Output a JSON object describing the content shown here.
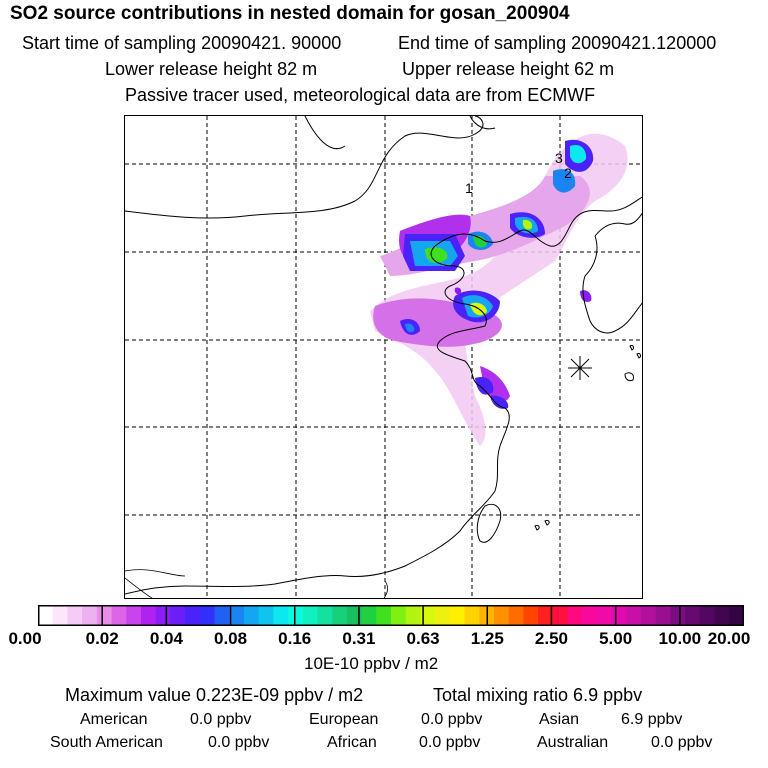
{
  "header": {
    "title": "SO2 source contributions in nested domain for gosan_200904",
    "start": "Start time of sampling 20090421. 90000",
    "end": "End time of sampling 20090421.120000",
    "lower": "Lower release height   82 m",
    "upper": "Upper release height   62 m",
    "note": "Passive tracer used, meteorological data are from ECMWF"
  },
  "map": {
    "markers": [
      "1",
      "2",
      "3"
    ],
    "receptor_symbol": "✳"
  },
  "colorbar": {
    "ticks": [
      "0.00",
      "0.02",
      "0.04",
      "0.08",
      "0.16",
      "0.31",
      "0.63",
      "1.25",
      "2.50",
      "5.00",
      "10.00",
      "20.00"
    ],
    "colors": [
      "#ffffff",
      "#fbe6fb",
      "#f5ccf5",
      "#eeb0ee",
      "#e98de9",
      "#dd66e8",
      "#c844ec",
      "#b022f0",
      "#8a1ef5",
      "#6a1ef8",
      "#4a22fa",
      "#3030fa",
      "#2060f5",
      "#1a84f3",
      "#14a6f1",
      "#10c4ef",
      "#0ce8f0",
      "#0afae0",
      "#10f0c0",
      "#14e0a0",
      "#16d07c",
      "#18c060",
      "#20d040",
      "#40e020",
      "#80f010",
      "#b0f410",
      "#d8f80c",
      "#f0f010",
      "#fff000",
      "#ffd200",
      "#ffb400",
      "#ff9000",
      "#ff6c00",
      "#ff4400",
      "#ff2020",
      "#ff1040",
      "#ff0880",
      "#f8089c",
      "#f00aa8",
      "#e00cb0",
      "#c810a8",
      "#b0109c",
      "#981090",
      "#7a0e80",
      "#660a70",
      "#520860",
      "#420650",
      "#340444"
    ],
    "units": "10E-10 ppbv / m2"
  },
  "summary": {
    "max": "Maximum value  0.223E-09 ppbv / m2",
    "total": "Total mixing ratio       6.9 ppbv"
  },
  "sources": {
    "american": {
      "label": "American",
      "value": "0.0 ppbv"
    },
    "european": {
      "label": "European",
      "value": "0.0 ppbv"
    },
    "asian": {
      "label": "Asian",
      "value": "6.9 ppbv"
    },
    "south_american": {
      "label": "South American",
      "value": "0.0 ppbv"
    },
    "african": {
      "label": "African",
      "value": "0.0 ppbv"
    },
    "australian": {
      "label": "Australian",
      "value": "0.0 ppbv"
    }
  }
}
